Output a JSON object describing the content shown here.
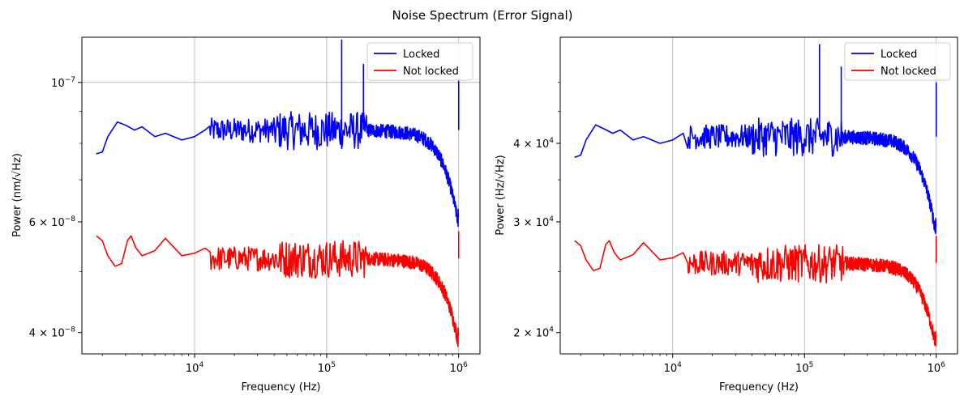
{
  "figure": {
    "title": "Noise Spectrum (Error Signal)"
  },
  "chart_data": [
    {
      "type": "line",
      "xlabel": "Frequency (Hz)",
      "ylabel": "Power (nm/√Hz)",
      "x_scale": "log",
      "y_scale": "log",
      "xlim": [
        1400,
        1450000
      ],
      "ylim": [
        3.7e-08,
        1.18e-07
      ],
      "x_ticks": [
        {
          "value": 10000,
          "base": "10",
          "exp": "4"
        },
        {
          "value": 100000,
          "base": "10",
          "exp": "5"
        },
        {
          "value": 1000000,
          "base": "10",
          "exp": "6"
        }
      ],
      "y_ticks": [
        {
          "value": 4e-08,
          "mant": "4 × ",
          "base": "10",
          "exp": "−8"
        },
        {
          "value": 6e-08,
          "mant": "6 × ",
          "base": "10",
          "exp": "−8"
        },
        {
          "value": 1e-07,
          "mant": "",
          "base": "10",
          "exp": "−7"
        }
      ],
      "y_grid_values": [
        1e-07
      ],
      "grid": true,
      "legend_position": "top-right",
      "series": [
        {
          "name": "Locked",
          "color": "#0000ff",
          "base_level": 8.4e-08,
          "peak_value": 1.17e-07,
          "end_value": 6.1e-08,
          "points": [
            [
              1800,
              7.7e-08
            ],
            [
              2000,
              7.75e-08
            ],
            [
              2200,
              8.2e-08
            ],
            [
              2600,
              8.65e-08
            ],
            [
              3000,
              8.55e-08
            ],
            [
              3500,
              8.4e-08
            ],
            [
              4000,
              8.5e-08
            ],
            [
              5000,
              8.2e-08
            ],
            [
              6000,
              8.3e-08
            ],
            [
              8000,
              8.1e-08
            ],
            [
              10000,
              8.2e-08
            ],
            [
              12000,
              8.4e-08
            ]
          ],
          "spikes": [
            [
              130000,
              1.17e-07
            ],
            [
              190000,
              1.07e-07
            ],
            [
              1000000,
              1.01e-07
            ]
          ]
        },
        {
          "name": "Not locked",
          "color": "#ff0000",
          "base_level": 5.25e-08,
          "peak_value": 5.9e-08,
          "end_value": 3.95e-08,
          "points": [
            [
              1800,
              5.7e-08
            ],
            [
              2000,
              5.6e-08
            ],
            [
              2200,
              5.3e-08
            ],
            [
              2500,
              5.1e-08
            ],
            [
              2800,
              5.15e-08
            ],
            [
              3100,
              5.6e-08
            ],
            [
              3300,
              5.7e-08
            ],
            [
              3600,
              5.45e-08
            ],
            [
              4000,
              5.3e-08
            ],
            [
              5000,
              5.4e-08
            ],
            [
              6000,
              5.65e-08
            ],
            [
              8000,
              5.3e-08
            ],
            [
              10000,
              5.35e-08
            ],
            [
              12000,
              5.45e-08
            ]
          ],
          "spikes": [
            [
              1000000,
              5.8e-08
            ]
          ]
        }
      ]
    },
    {
      "type": "line",
      "xlabel": "Frequency (Hz)",
      "ylabel": "Power (Hz/√Hz)",
      "x_scale": "log",
      "y_scale": "log",
      "xlim": [
        1400,
        1450000
      ],
      "ylim": [
        18500,
        59000
      ],
      "x_ticks": [
        {
          "value": 10000,
          "base": "10",
          "exp": "4"
        },
        {
          "value": 100000,
          "base": "10",
          "exp": "5"
        },
        {
          "value": 1000000,
          "base": "10",
          "exp": "6"
        }
      ],
      "y_ticks": [
        {
          "value": 20000,
          "mant": "2 × ",
          "base": "10",
          "exp": "4"
        },
        {
          "value": 30000,
          "mant": "3 × ",
          "base": "10",
          "exp": "4"
        },
        {
          "value": 40000,
          "mant": "4 × ",
          "base": "10",
          "exp": "4"
        }
      ],
      "y_grid_values": [],
      "grid": true,
      "legend_position": "top-right",
      "series": [
        {
          "name": "Locked",
          "color": "#0000ff",
          "base_level": 41000,
          "peak_value": 57500,
          "end_value": 29500,
          "points": [
            [
              1800,
              38000
            ],
            [
              2000,
              38300
            ],
            [
              2200,
              40500
            ],
            [
              2600,
              42800
            ],
            [
              3000,
              42200
            ],
            [
              3500,
              41500
            ],
            [
              4000,
              42000
            ],
            [
              5000,
              40500
            ],
            [
              6000,
              41000
            ],
            [
              8000,
              40000
            ],
            [
              10000,
              40500
            ],
            [
              12000,
              41500
            ]
          ],
          "spikes": [
            [
              130000,
              57500
            ],
            [
              190000,
              53000
            ],
            [
              1000000,
              50000
            ]
          ]
        },
        {
          "name": "Not locked",
          "color": "#ff0000",
          "base_level": 25800,
          "peak_value": 29000,
          "end_value": 19500,
          "points": [
            [
              1800,
              28000
            ],
            [
              2000,
              27500
            ],
            [
              2200,
              26100
            ],
            [
              2500,
              25100
            ],
            [
              2800,
              25300
            ],
            [
              3100,
              27600
            ],
            [
              3300,
              28000
            ],
            [
              3600,
              26800
            ],
            [
              4000,
              26100
            ],
            [
              5000,
              26600
            ],
            [
              6000,
              27800
            ],
            [
              8000,
              26100
            ],
            [
              10000,
              26300
            ],
            [
              12000,
              26800
            ]
          ],
          "spikes": [
            [
              1000000,
              28500
            ]
          ]
        }
      ]
    }
  ]
}
